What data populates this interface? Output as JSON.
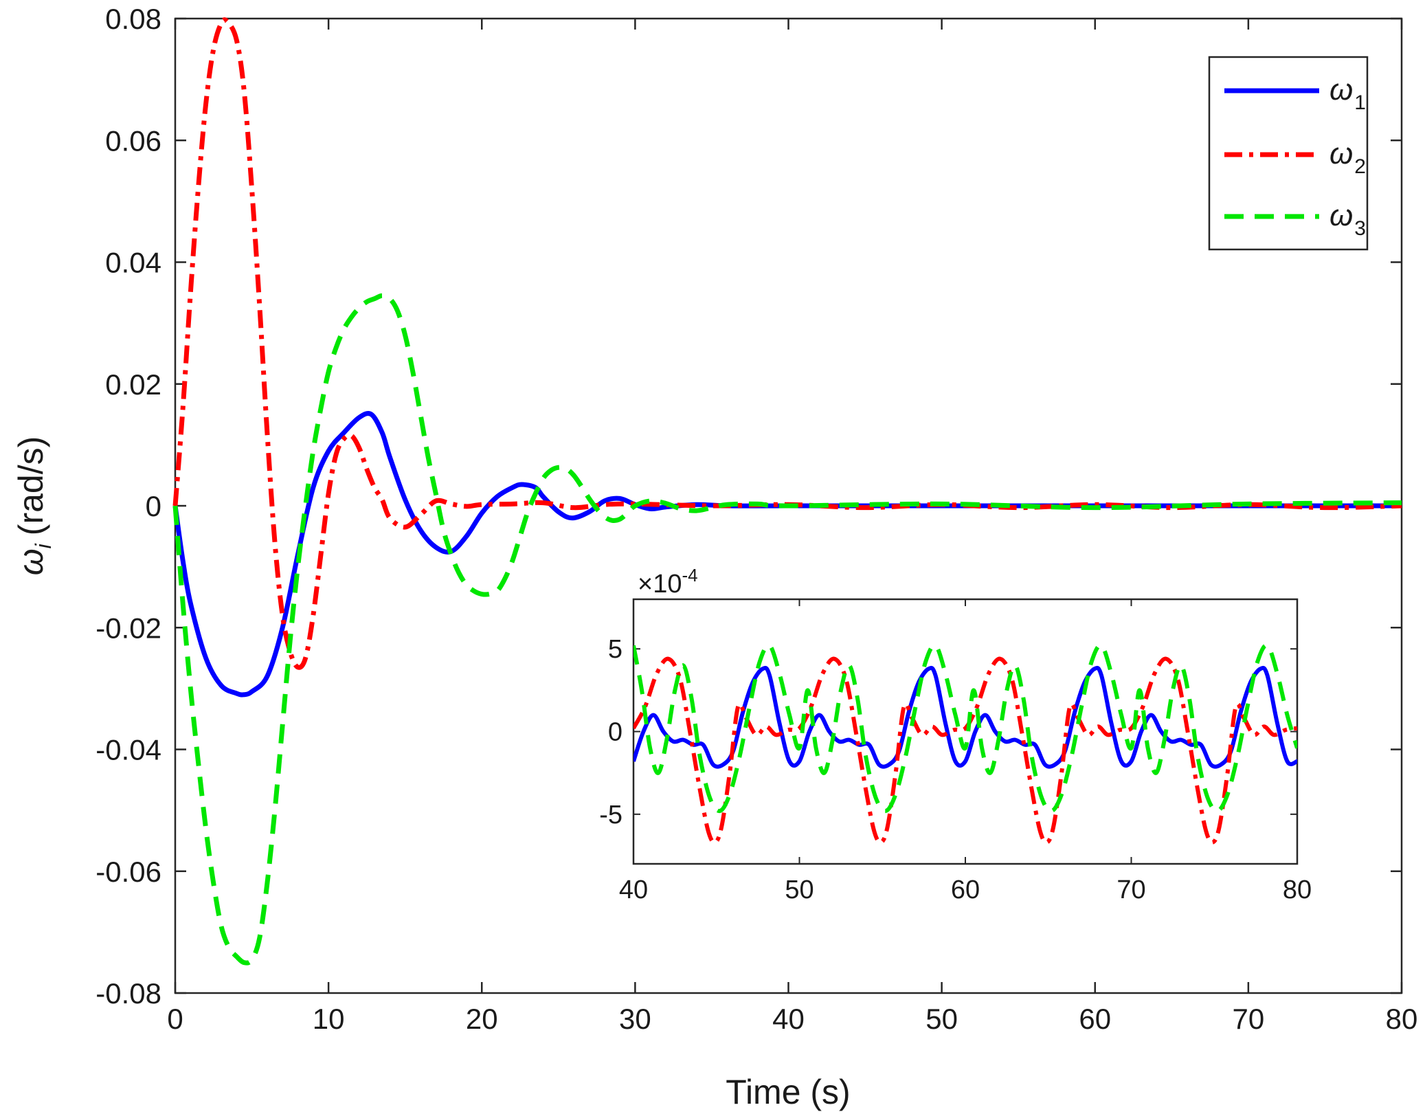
{
  "chart_data": [
    {
      "type": "line",
      "xlabel": "Time (s)",
      "ylabel_symbol": "ω",
      "ylabel_sub": "i",
      "ylabel_unit": "(rad/s)",
      "xlim": [
        0,
        80
      ],
      "ylim": [
        -0.08,
        0.08
      ],
      "xticks": [
        0,
        10,
        20,
        30,
        40,
        50,
        60,
        70,
        80
      ],
      "yticks": [
        -0.08,
        -0.06,
        -0.04,
        -0.02,
        0,
        0.02,
        0.04,
        0.06,
        0.08
      ],
      "xtick_labels": [
        "0",
        "10",
        "20",
        "30",
        "40",
        "50",
        "60",
        "70",
        "80"
      ],
      "ytick_labels": [
        "-0.08",
        "-0.06",
        "-0.04",
        "-0.02",
        "0",
        "0.02",
        "0.04",
        "0.06",
        "0.08"
      ],
      "legend_position": "top-right",
      "series": [
        {
          "name": "ω1",
          "symbol": "ω",
          "sub": "1",
          "color": "#0000ff",
          "style": "solid",
          "x": [
            0,
            0.5,
            1,
            2,
            3,
            4,
            4.5,
            5,
            6,
            7,
            8,
            9,
            10,
            11,
            12,
            12.8,
            13.5,
            14,
            15,
            16,
            17,
            18,
            19,
            20,
            21,
            22,
            22.6,
            23.5,
            24,
            25,
            25.9,
            27,
            28,
            29,
            30,
            31,
            32,
            34,
            36,
            40,
            50,
            60,
            70,
            80
          ],
          "y": [
            0,
            -0.009,
            -0.016,
            -0.025,
            -0.0295,
            -0.0308,
            -0.031,
            -0.0305,
            -0.028,
            -0.02,
            -0.008,
            0.003,
            0.009,
            0.012,
            0.0145,
            0.015,
            0.012,
            0.008,
            0.001,
            -0.004,
            -0.0068,
            -0.0075,
            -0.005,
            -0.0012,
            0.0015,
            0.003,
            0.0035,
            0.003,
            0.0015,
            -0.001,
            -0.002,
            -0.001,
            0.0008,
            0.0012,
            0.0002,
            -0.0005,
            -0.0002,
            0.0002,
            0,
            0,
            0,
            0,
            0,
            0
          ]
        },
        {
          "name": "ω2",
          "symbol": "ω",
          "sub": "2",
          "color": "#ff0000",
          "style": "dashdot",
          "x": [
            0,
            0.5,
            1,
            1.5,
            2,
            2.5,
            3,
            3.4,
            4,
            4.5,
            5,
            5.5,
            6,
            6.5,
            7,
            7.5,
            8,
            8.5,
            9,
            9.5,
            10,
            10.5,
            11,
            11.5,
            12,
            12.5,
            13,
            13.5,
            14,
            15,
            16,
            17,
            18,
            19,
            20,
            22,
            24,
            26,
            28,
            30,
            35,
            40,
            45,
            50,
            55,
            60,
            65,
            70,
            75,
            80
          ],
          "y": [
            0,
            0.016,
            0.035,
            0.052,
            0.066,
            0.075,
            0.0792,
            0.0795,
            0.0765,
            0.068,
            0.052,
            0.033,
            0.012,
            -0.006,
            -0.018,
            -0.024,
            -0.0265,
            -0.025,
            -0.018,
            -0.008,
            0.002,
            0.0085,
            0.011,
            0.0115,
            0.0095,
            0.006,
            0.003,
            0.001,
            -0.002,
            -0.0035,
            -0.0015,
            0.0008,
            0.0003,
            -0.0001,
            0.0002,
            0.0003,
            0.0005,
            -0.0003,
            0.0002,
            0.0003,
            0,
            0.0002,
            -0.0003,
            0.0002,
            -0.0003,
            0.0002,
            -0.0003,
            0.0002,
            -0.0003,
            0
          ]
        },
        {
          "name": "ω3",
          "symbol": "ω",
          "sub": "3",
          "color": "#00e600",
          "style": "dashed",
          "x": [
            0,
            0.5,
            1,
            1.5,
            2,
            2.5,
            3,
            3.5,
            4,
            4.5,
            5,
            5.5,
            6,
            6.5,
            7,
            7.5,
            8,
            8.5,
            9,
            9.5,
            10,
            10.5,
            11,
            11.5,
            12,
            12.5,
            13,
            13.5,
            14,
            14.5,
            15,
            15.5,
            16,
            16.5,
            17,
            17.5,
            18,
            18.5,
            19,
            19.5,
            20,
            20.5,
            21,
            21.5,
            22,
            22.5,
            23,
            23.5,
            24,
            24.5,
            25,
            25.5,
            26,
            26.5,
            27,
            27.5,
            28,
            28.5,
            29,
            29.5,
            30,
            31,
            32,
            33,
            34,
            35,
            36,
            38,
            40,
            50,
            60,
            70,
            80
          ],
          "y": [
            0,
            -0.016,
            -0.03,
            -0.042,
            -0.053,
            -0.062,
            -0.069,
            -0.0725,
            -0.074,
            -0.075,
            -0.0745,
            -0.071,
            -0.062,
            -0.05,
            -0.036,
            -0.022,
            -0.01,
            0,
            0.009,
            0.016,
            0.022,
            0.026,
            0.029,
            0.031,
            0.0325,
            0.0335,
            0.034,
            0.0345,
            0.034,
            0.032,
            0.028,
            0.022,
            0.015,
            0.008,
            0.002,
            -0.004,
            -0.008,
            -0.011,
            -0.013,
            -0.014,
            -0.0145,
            -0.0145,
            -0.014,
            -0.012,
            -0.009,
            -0.005,
            -0.001,
            0.002,
            0.0045,
            0.0058,
            0.0063,
            0.0061,
            0.005,
            0.0032,
            0.0012,
            -0.0005,
            -0.0018,
            -0.0024,
            -0.0022,
            -0.0012,
            0,
            0.0008,
            0.0004,
            -0.0005,
            -0.0008,
            -0.0003,
            0.0002,
            0.0003,
            0,
            0.0003,
            -0.0003,
            0.0003,
            0.0005
          ]
        }
      ]
    },
    {
      "type": "line",
      "inset": true,
      "exponent_label": "×10",
      "exponent_power": "-4",
      "xlim": [
        40,
        80
      ],
      "ylim": [
        -8,
        8
      ],
      "xticks": [
        40,
        50,
        60,
        70,
        80
      ],
      "yticks": [
        -5,
        0,
        5
      ],
      "xtick_labels": [
        "40",
        "50",
        "60",
        "70",
        "80"
      ],
      "ytick_labels": [
        "-5",
        "0",
        "5"
      ],
      "period": 10,
      "series": [
        {
          "name": "ω1",
          "color": "#0000ff",
          "style": "solid",
          "x_one_period": [
            40,
            40.6,
            41.2,
            41.8,
            42.4,
            43,
            43.6,
            44.2,
            44.8,
            45.4,
            46,
            46.6,
            47.2,
            47.8,
            48.2,
            48.8,
            49.4,
            50
          ],
          "y_one_period": [
            -1.8,
            0,
            1,
            0,
            -0.6,
            -0.5,
            -0.8,
            -0.8,
            -2,
            -2,
            -1.2,
            1.2,
            3,
            3.8,
            3.4,
            0.5,
            -1.8,
            -1.8
          ]
        },
        {
          "name": "ω2",
          "color": "#ff0000",
          "style": "dashdot",
          "x_one_period": [
            40,
            40.7,
            41.4,
            42.1,
            42.8,
            43.4,
            44,
            44.5,
            44.9,
            45.3,
            45.8,
            46.3,
            46.8,
            47.4,
            48,
            48.6,
            49.3,
            50
          ],
          "y_one_period": [
            0.2,
            1.5,
            3.5,
            4.4,
            3.2,
            0,
            -3.5,
            -6,
            -6.7,
            -5.8,
            -2.5,
            1.5,
            0.8,
            -0.2,
            0.3,
            -0.2,
            0.1,
            0.2
          ]
        },
        {
          "name": "ω3",
          "color": "#00e600",
          "style": "dashed",
          "x_one_period": [
            40,
            40.5,
            41,
            41.5,
            42,
            42.5,
            43,
            43.5,
            44,
            44.6,
            45.2,
            45.8,
            46.4,
            47,
            47.6,
            48.2,
            48.8,
            49.4,
            50
          ],
          "y_one_period": [
            5.2,
            2.5,
            -1,
            -2.5,
            -0.5,
            2.5,
            4,
            2,
            -1.5,
            -4,
            -4.8,
            -3.8,
            -1.5,
            1.5,
            4.2,
            5.2,
            3.5,
            1,
            -1
          ]
        }
      ]
    }
  ]
}
